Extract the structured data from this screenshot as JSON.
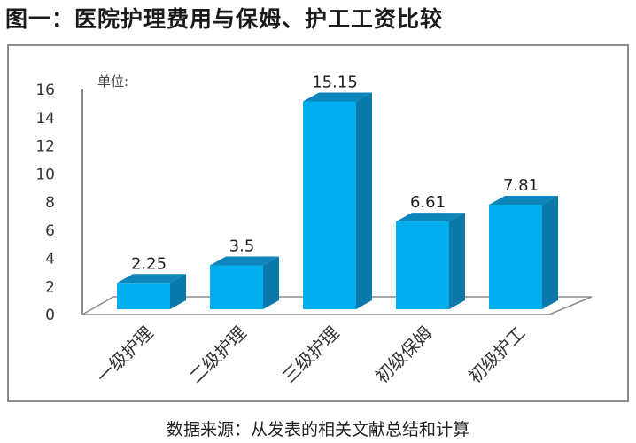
{
  "title": "图一：医院护理费用与保姆、护工工资比较",
  "unit_label": "单位:",
  "source": "数据来源：从发表的相关文献总结和计算",
  "colors": {
    "bar_front": "#00AEEF",
    "bar_side": "#0A78A8",
    "bar_top": "#0E86BC",
    "axis": "#8c8c8c"
  },
  "chart_data": {
    "type": "bar",
    "title": "图一：医院护理费用与保姆、护工工资比较",
    "subtitle": "",
    "xlabel": "",
    "ylabel": "单位:",
    "categories": [
      "一级护理",
      "二级护理",
      "三级护理",
      "初级保姆",
      "初级护工"
    ],
    "values": [
      2.25,
      3.5,
      15.15,
      6.61,
      7.81
    ],
    "data_labels": [
      "2.25",
      "3.5",
      "15.15",
      "6.61",
      "7.81"
    ],
    "y_ticks": [
      "0",
      "2",
      "4",
      "6",
      "8",
      "10",
      "12",
      "14",
      "16"
    ],
    "ylim": [
      0,
      16
    ],
    "grid": false,
    "legend": null,
    "style": "3d-column",
    "x_label_rotation": -45,
    "annotation": "数据来源：从发表的相关文献总结和计算"
  }
}
